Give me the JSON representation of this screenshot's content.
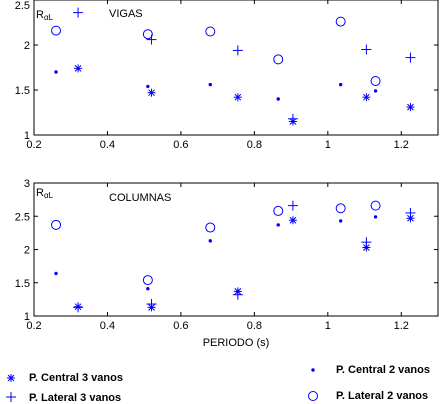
{
  "chart_data": [
    {
      "type": "scatter",
      "title": "VIGAS",
      "ylabel_main": "R",
      "ylabel_sub": "αL",
      "xlabel": "",
      "xlim": [
        0.2,
        1.3
      ],
      "ylim": [
        1,
        2.5
      ],
      "xticks": [
        0.2,
        0.4,
        0.6,
        0.8,
        1,
        1.2
      ],
      "xtick_labels": [
        "0.2",
        "0.4",
        "0.6",
        "0.8",
        "1",
        "1.2"
      ],
      "yticks": [
        1,
        1.5,
        2,
        2.5
      ],
      "ytick_labels": [
        "1",
        "1.5",
        "2",
        "2.5"
      ],
      "series": [
        {
          "name": "P. Central 3 vanos",
          "marker": "star",
          "x": [
            0.32,
            0.52,
            0.755,
            0.905,
            1.105,
            1.225
          ],
          "y": [
            1.74,
            1.47,
            1.42,
            1.15,
            1.42,
            1.31
          ]
        },
        {
          "name": "P. Lateral 3 vanos",
          "marker": "plus",
          "x": [
            0.32,
            0.52,
            0.755,
            0.905,
            1.105,
            1.225
          ],
          "y": [
            2.36,
            2.06,
            1.94,
            1.18,
            1.95,
            1.86
          ]
        },
        {
          "name": "P. Central 2 vanos",
          "marker": "dot",
          "x": [
            0.26,
            0.51,
            0.68,
            0.865,
            1.035,
            1.13
          ],
          "y": [
            1.7,
            1.54,
            1.56,
            1.4,
            1.56,
            1.49
          ]
        },
        {
          "name": "P. Lateral 2 vanos",
          "marker": "circle",
          "x": [
            0.26,
            0.51,
            0.68,
            0.865,
            1.035,
            1.13
          ],
          "y": [
            2.16,
            2.12,
            2.15,
            1.84,
            2.26,
            1.6
          ]
        }
      ]
    },
    {
      "type": "scatter",
      "title": "COLUMNAS",
      "ylabel_main": "R",
      "ylabel_sub": "αL",
      "xlabel": "PERIODO (s)",
      "xlim": [
        0.2,
        1.3
      ],
      "ylim": [
        1,
        3
      ],
      "xticks": [
        0.2,
        0.4,
        0.6,
        0.8,
        1,
        1.2
      ],
      "xtick_labels": [
        "0.2",
        "0.4",
        "0.6",
        "0.8",
        "1",
        "1.2"
      ],
      "yticks": [
        1,
        1.5,
        2,
        2.5,
        3
      ],
      "ytick_labels": [
        "1",
        "1.5",
        "2",
        "2.5",
        "3"
      ],
      "series": [
        {
          "name": "P. Central 3 vanos",
          "marker": "star",
          "x": [
            0.32,
            0.52,
            0.755,
            0.905,
            1.105,
            1.225
          ],
          "y": [
            1.14,
            1.13,
            1.37,
            2.44,
            2.03,
            2.47
          ]
        },
        {
          "name": "P. Lateral 3 vanos",
          "marker": "plus",
          "x": [
            0.32,
            0.52,
            0.755,
            0.905,
            1.105,
            1.225
          ],
          "y": [
            1.13,
            1.18,
            1.32,
            2.66,
            2.11,
            2.55
          ]
        },
        {
          "name": "P. Central 2 vanos",
          "marker": "dot",
          "x": [
            0.26,
            0.51,
            0.68,
            0.865,
            1.035,
            1.13
          ],
          "y": [
            1.64,
            1.41,
            2.13,
            2.37,
            2.43,
            2.49
          ]
        },
        {
          "name": "P. Lateral 2 vanos",
          "marker": "circle",
          "x": [
            0.26,
            0.51,
            0.68,
            0.865,
            1.035,
            1.13
          ],
          "y": [
            2.37,
            1.54,
            2.33,
            2.58,
            2.62,
            2.66
          ]
        }
      ]
    }
  ],
  "legend": {
    "items": [
      {
        "label": "P. Central 3 vanos",
        "marker": "star"
      },
      {
        "label": "P. Lateral 3 vanos",
        "marker": "plus"
      },
      {
        "label": "P. Central 2 vanos",
        "marker": "dot"
      },
      {
        "label": "P. Lateral 2 vanos",
        "marker": "circle"
      }
    ],
    "placement": "bottom"
  },
  "colors": {
    "marker": "#0000ff",
    "axes": "#000000",
    "text": "#000000",
    "background": "#ffffff"
  }
}
